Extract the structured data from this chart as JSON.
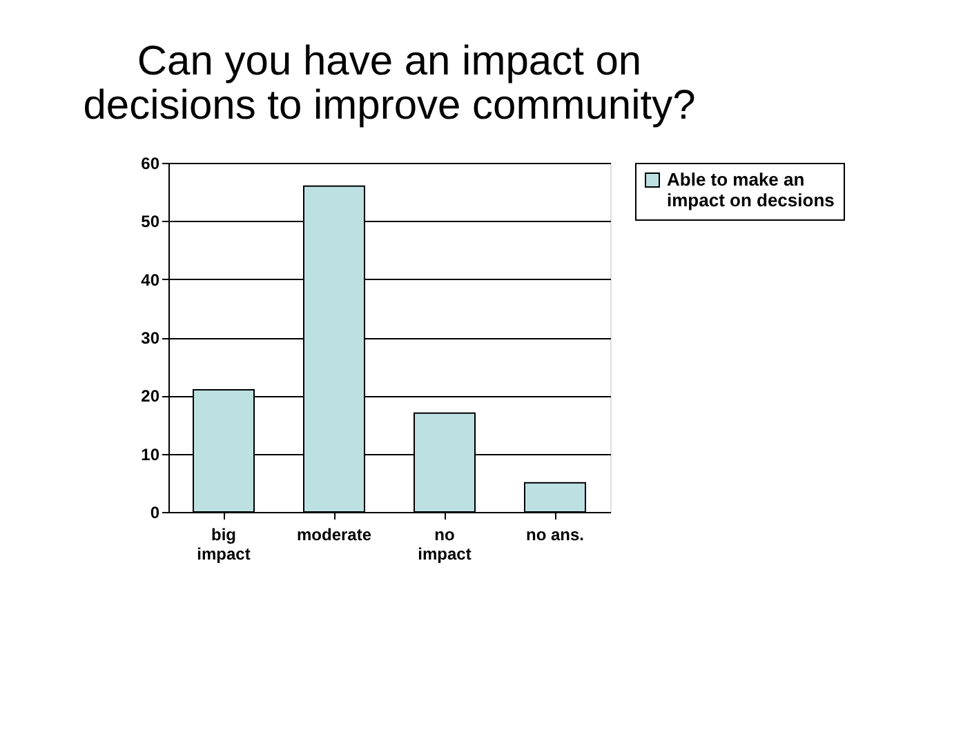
{
  "chart_data": {
    "type": "bar",
    "title": [
      "Can you have an impact on",
      "decisions to improve community?"
    ],
    "categories": [
      "big impact",
      "moderate",
      "no impact",
      "no ans."
    ],
    "series": [
      {
        "name": "Able to make an impact on decsions",
        "color": "#bde1e3",
        "values": [
          21,
          56,
          17,
          5
        ]
      }
    ],
    "ylim": [
      0,
      60
    ],
    "yticks": [
      0,
      10,
      20,
      30,
      40,
      50,
      60
    ],
    "grid": "y",
    "legend": "right"
  }
}
